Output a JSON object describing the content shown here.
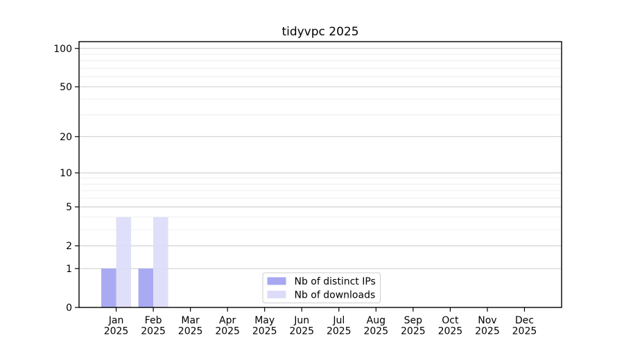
{
  "figure": {
    "background": "#ffffff"
  },
  "chart_data": {
    "type": "bar",
    "title": "tidyvpc 2025",
    "categories": [
      "Jan",
      "Feb",
      "Mar",
      "Apr",
      "May",
      "Jun",
      "Jul",
      "Aug",
      "Sep",
      "Oct",
      "Nov",
      "Dec"
    ],
    "x_year_label": "2025",
    "series": [
      {
        "name": "Nb of distinct IPs",
        "color": "#a7a7f2",
        "values": [
          1,
          1,
          0,
          0,
          0,
          0,
          0,
          0,
          0,
          0,
          0,
          0
        ]
      },
      {
        "name": "Nb of downloads",
        "color": "#dcdcf8",
        "values": [
          4,
          4,
          0,
          0,
          0,
          0,
          0,
          0,
          0,
          0,
          0,
          0
        ]
      }
    ],
    "yscale": "log1p",
    "ylim": [
      0,
      113
    ],
    "yticks_major": [
      0,
      1,
      2,
      5,
      10,
      20,
      50,
      100
    ],
    "yticks_minor": [
      3,
      4,
      6,
      7,
      8,
      9,
      30,
      40,
      60,
      70,
      80,
      90
    ],
    "grid": {
      "orientation": "horizontal",
      "major_color": "#c8c8c8",
      "minor_color": "#ececec"
    },
    "axis_color": "#000000",
    "legend": {
      "position": "inside-bottom-center",
      "background": "#ffffff",
      "border_color": "#cccccc"
    }
  }
}
